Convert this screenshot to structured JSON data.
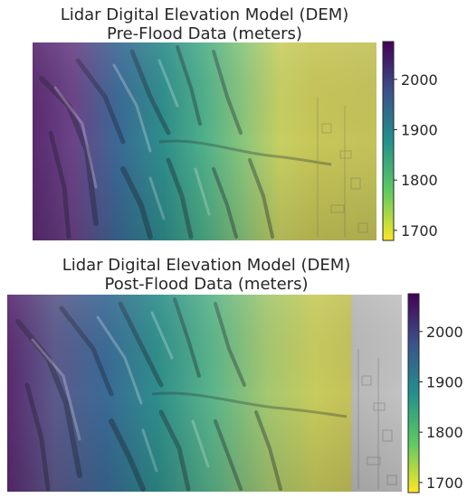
{
  "chart_data": [
    {
      "type": "heatmap",
      "title_line1": "Lidar Digital Elevation Model (DEM)",
      "title_line2": "Pre-Flood Data (meters)",
      "colormap": "viridis_r",
      "colorbar": {
        "min": 1680,
        "max": 2075,
        "ticks": [
          1700,
          1800,
          1900,
          2000
        ]
      },
      "overlay": "hillshade",
      "grid": false
    },
    {
      "type": "heatmap",
      "title_line1": "Lidar Digital Elevation Model (DEM)",
      "title_line2": "Post-Flood Data (meters)",
      "colormap": "viridis_r",
      "colorbar": {
        "min": 1680,
        "max": 2075,
        "ticks": [
          1700,
          1800,
          1900,
          2000
        ]
      },
      "overlay": "hillshade",
      "grid": false
    }
  ],
  "colors": {
    "viridis_dark": "#440154",
    "viridis_blue": "#3b528b",
    "viridis_teal": "#21918c",
    "viridis_green": "#5ec962",
    "viridis_yellow": "#fde725"
  }
}
